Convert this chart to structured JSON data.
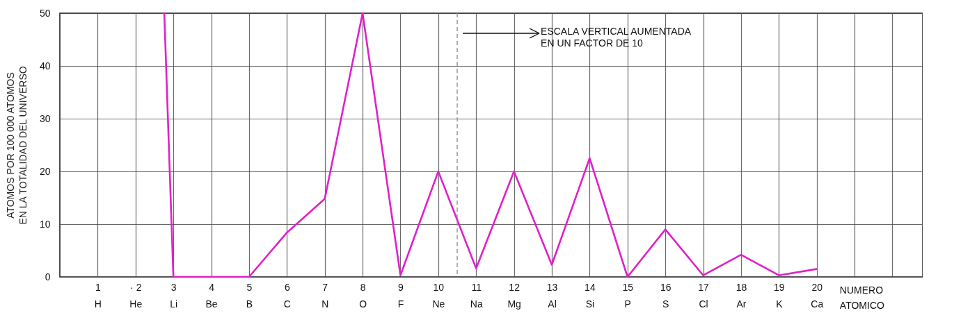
{
  "chart_data": {
    "type": "line",
    "xlabel": "NUMERO ATOMICO",
    "ylabel": "ATOMOS POR 100 000 ATOMOS EN LA TOTALIDAD DEL UNIVERSO",
    "series": [
      {
        "color": "#e020c8",
        "x": [
          2.76,
          3,
          4,
          5,
          6,
          7,
          8,
          9,
          10,
          11,
          12,
          13,
          14,
          15,
          16,
          17,
          18,
          19,
          20
        ],
        "values": [
          50,
          0,
          0,
          0,
          8.4,
          14.8,
          50,
          0.3,
          20,
          1.6,
          20,
          2.3,
          22.5,
          0,
          9,
          0.3,
          4.2,
          0.3,
          1.5
        ]
      }
    ],
    "xlim": [
      0,
      22.8
    ],
    "ylim": [
      0,
      50
    ],
    "xticks": [
      {
        "value": 1,
        "label": "1\nH"
      },
      {
        "value": 2,
        "label": "· 2\nHe"
      },
      {
        "value": 3,
        "label": "3\nLi"
      },
      {
        "value": 4,
        "label": "4\nBe"
      },
      {
        "value": 5,
        "label": "5\nB"
      },
      {
        "value": 6,
        "label": "6\nC"
      },
      {
        "value": 7,
        "label": "7\nN"
      },
      {
        "value": 8,
        "label": "8\nO"
      },
      {
        "value": 9,
        "label": "9\nF"
      },
      {
        "value": 10,
        "label": "10\nNe"
      },
      {
        "value": 11,
        "label": "11\nNa"
      },
      {
        "value": 12,
        "label": "12\nMg"
      },
      {
        "value": 13,
        "label": "13\nAl"
      },
      {
        "value": 14,
        "label": "14\nSi"
      },
      {
        "value": 15,
        "label": "15\nP"
      },
      {
        "value": 16,
        "label": "16\nS"
      },
      {
        "value": 17,
        "label": "17\nCl"
      },
      {
        "value": 18,
        "label": "18\nAr"
      },
      {
        "value": 19,
        "label": "19\nK"
      },
      {
        "value": 20,
        "label": "20\nCa"
      },
      {
        "value": 21,
        "label": null
      },
      {
        "value": 22,
        "label": null
      }
    ],
    "yticks": [
      0,
      10,
      20,
      30,
      40,
      50
    ],
    "grid": true,
    "marker": "none",
    "line_style": "solid",
    "ref_lines": [
      {
        "axis": "x",
        "value": 10.5,
        "label": "ESCALA VERTICAL AUMENTADA EN UN FACTOR DE 10",
        "line_style": "dashed",
        "color": "#8a8a8a"
      }
    ]
  }
}
